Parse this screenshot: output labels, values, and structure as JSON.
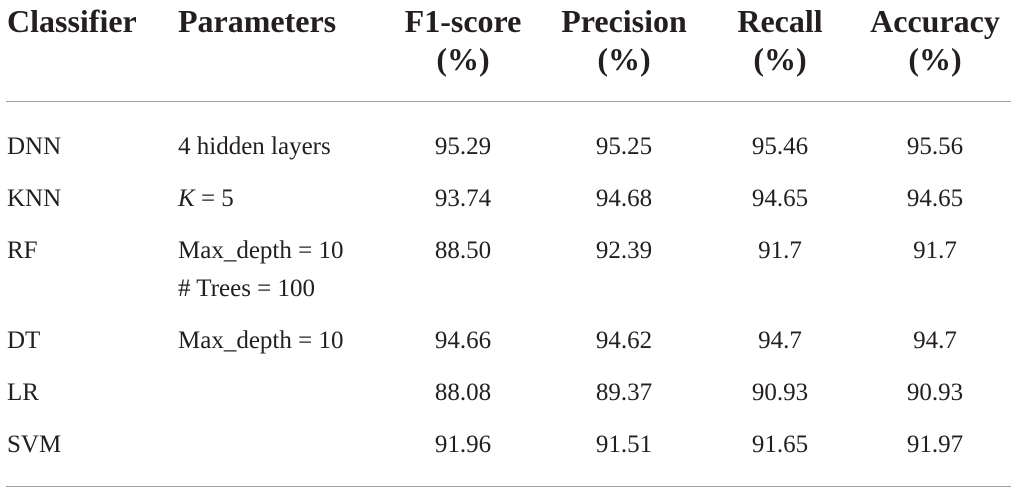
{
  "table": {
    "headers": [
      {
        "line1": "Classifier",
        "line2": ""
      },
      {
        "line1": "Parameters",
        "line2": ""
      },
      {
        "line1": "F1-score",
        "line2": "(%)"
      },
      {
        "line1": "Precision",
        "line2": "(%)"
      },
      {
        "line1": "Recall",
        "line2": "(%)"
      },
      {
        "line1": "Accuracy",
        "line2": "(%)"
      }
    ],
    "rows": [
      {
        "classifier": "DNN",
        "params": [
          "4 hidden layers"
        ],
        "f1": "95.29",
        "precision": "95.25",
        "recall": "95.46",
        "accuracy": "95.56"
      },
      {
        "classifier": "KNN",
        "params": [
          "K = 5"
        ],
        "f1": "93.74",
        "precision": "94.68",
        "recall": "94.65",
        "accuracy": "94.65"
      },
      {
        "classifier": "RF",
        "params": [
          "Max_depth = 10",
          "# Trees = 100"
        ],
        "f1": "88.50",
        "precision": "92.39",
        "recall": "91.7",
        "accuracy": "91.7"
      },
      {
        "classifier": "DT",
        "params": [
          "Max_depth = 10"
        ],
        "f1": "94.66",
        "precision": "94.62",
        "recall": "94.7",
        "accuracy": "94.7"
      },
      {
        "classifier": "LR",
        "params": [],
        "f1": "88.08",
        "precision": "89.37",
        "recall": "90.93",
        "accuracy": "90.93"
      },
      {
        "classifier": "SVM",
        "params": [],
        "f1": "91.96",
        "precision": "91.51",
        "recall": "91.65",
        "accuracy": "91.97"
      }
    ]
  }
}
